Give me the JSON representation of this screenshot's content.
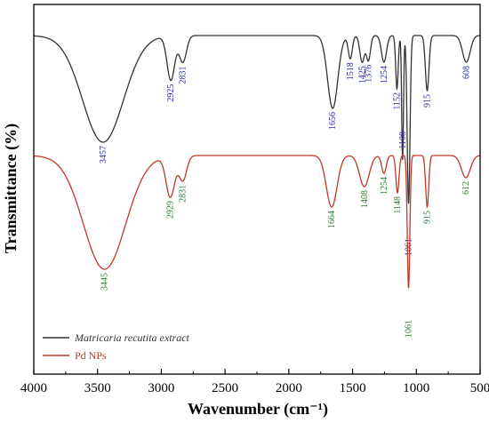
{
  "chart_data": {
    "type": "line",
    "xlabel": "Wavenumber (cm⁻¹)",
    "ylabel": "Transmittance (%)",
    "xlim": [
      4000,
      500
    ],
    "x_ticks": [
      "4000",
      "3500",
      "3000",
      "2500",
      "2000",
      "1500",
      "1000",
      "500"
    ],
    "y_ticks_shown": false,
    "grid": false,
    "legend_position": "bottom-left",
    "series": [
      {
        "name": "Matricaria recutita extract",
        "color": "#333333",
        "peaks": [
          {
            "x": 3457,
            "label": "3457"
          },
          {
            "x": 2925,
            "label": "2925"
          },
          {
            "x": 2831,
            "label": "2831"
          },
          {
            "x": 1656,
            "label": "1656"
          },
          {
            "x": 1518,
            "label": "1518"
          },
          {
            "x": 1425,
            "label": "1425"
          },
          {
            "x": 1376,
            "label": "1376"
          },
          {
            "x": 1254,
            "label": "1254"
          },
          {
            "x": 1152,
            "label": "1152"
          },
          {
            "x": 1108,
            "label": "1108"
          },
          {
            "x": 1061,
            "label": "1061"
          },
          {
            "x": 915,
            "label": "915"
          },
          {
            "x": 608,
            "label": "608"
          }
        ]
      },
      {
        "name": "Pd NPs",
        "color": "#c0392b",
        "peaks": [
          {
            "x": 3445,
            "label": "3445"
          },
          {
            "x": 2929,
            "label": "2929"
          },
          {
            "x": 2831,
            "label": "2831"
          },
          {
            "x": 1664,
            "label": "1664"
          },
          {
            "x": 1408,
            "label": "1408"
          },
          {
            "x": 1254,
            "label": "1254"
          },
          {
            "x": 1148,
            "label": "1148"
          },
          {
            "x": 1061,
            "label": "1061"
          },
          {
            "x": 915,
            "label": "915"
          },
          {
            "x": 612,
            "label": "612"
          }
        ]
      }
    ]
  },
  "colors": {
    "extract_line": "#333333",
    "pd_line": "#c0392b",
    "extract_labels": "#2b2bb0",
    "pd_labels": "#2e7d32",
    "axis": "#000000"
  }
}
